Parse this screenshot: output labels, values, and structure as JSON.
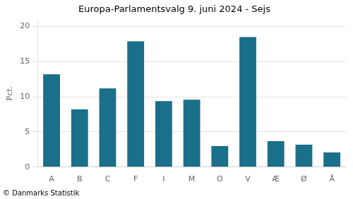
{
  "chart_data": {
    "type": "bar",
    "title": "Europa-Parlamentsvalg 9. juni 2024 - Sejs",
    "categories": [
      "A",
      "B",
      "C",
      "F",
      "I",
      "M",
      "O",
      "V",
      "Æ",
      "Ø",
      "Å"
    ],
    "values": [
      13.2,
      8.2,
      11.2,
      17.9,
      9.4,
      9.6,
      3.0,
      18.5,
      3.7,
      3.2,
      2.1
    ],
    "color": "#1a6f8a",
    "ylabel": "Pct.",
    "ylim": [
      0,
      21
    ],
    "yticks": [
      0,
      5,
      10,
      15,
      20
    ],
    "grid": true,
    "footer": "© Danmarks Statistik"
  }
}
